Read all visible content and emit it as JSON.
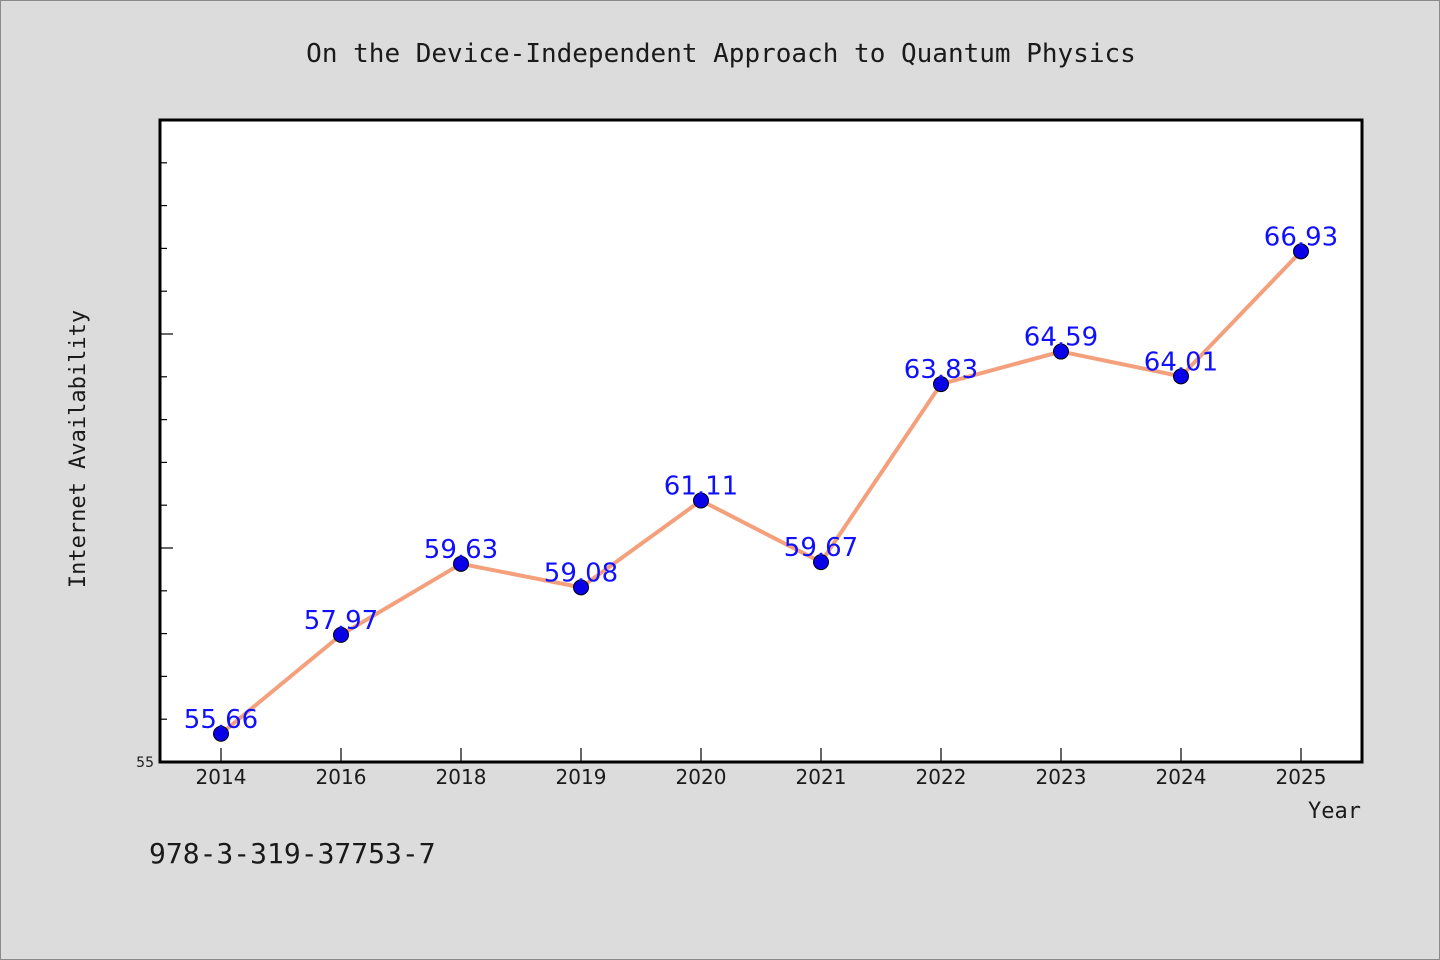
{
  "chart_data": {
    "type": "line",
    "title": "On the Device-Independent Approach to Quantum Physics",
    "xlabel": "Year",
    "ylabel": "Internet Availability",
    "categories": [
      "2014",
      "2016",
      "2018",
      "2019",
      "2020",
      "2021",
      "2022",
      "2023",
      "2024",
      "2025"
    ],
    "series": [
      {
        "values": [
          55.66,
          57.97,
          59.63,
          59.08,
          61.11,
          59.67,
          63.83,
          64.59,
          64.01,
          66.93
        ],
        "labels": [
          "55.66",
          "57.97",
          "59.63",
          "59.08",
          "61.11",
          "59.67",
          "63.83",
          "64.59",
          "64.01",
          "66.93"
        ]
      }
    ],
    "yticks": [
      "55"
    ],
    "ylim": [
      55,
      70
    ],
    "grid": false,
    "line_color": "#f4a07c",
    "marker_color": "#0a00e8",
    "label_color": "#1010ff"
  },
  "footer": {
    "isbn": "978-3-319-37753-7"
  }
}
